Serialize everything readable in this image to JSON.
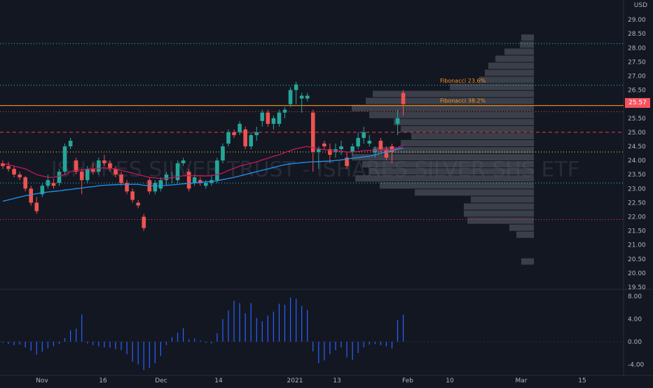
{
  "chart_data": [
    {
      "type": "candlestick",
      "currency_label": "USD",
      "watermark": "ISHARES SILVER TRUST - ISHARES SILVER SHS ETF",
      "last_price": "25.57",
      "ylim": [
        19.5,
        29.5
      ],
      "y_ticks": [
        "19.50",
        "20.00",
        "20.50",
        "21.00",
        "21.50",
        "22.00",
        "22.50",
        "23.00",
        "23.50",
        "24.00",
        "24.50",
        "25.00",
        "25.50",
        "26.00",
        "26.50",
        "27.00",
        "27.50",
        "28.00",
        "28.50",
        "29.00"
      ],
      "x_ticks": [
        "Nov",
        "16",
        "Dec",
        "14",
        "2021",
        "13",
        "Feb",
        "10",
        "Mar",
        "15"
      ],
      "ohlc": [
        [
          23.9,
          24.0,
          23.7,
          23.8
        ],
        [
          23.8,
          23.95,
          23.6,
          23.7
        ],
        [
          23.7,
          23.8,
          23.4,
          23.5
        ],
        [
          23.5,
          23.6,
          23.3,
          23.4
        ],
        [
          23.4,
          23.45,
          22.9,
          23.0
        ],
        [
          23.0,
          23.1,
          22.4,
          22.5
        ],
        [
          22.5,
          22.7,
          22.1,
          22.2
        ],
        [
          22.8,
          23.2,
          22.7,
          23.1
        ],
        [
          23.1,
          23.5,
          23.0,
          23.3
        ],
        [
          23.2,
          23.35,
          23.0,
          23.1
        ],
        [
          23.2,
          23.7,
          23.1,
          23.6
        ],
        [
          23.6,
          24.6,
          23.5,
          24.5
        ],
        [
          24.5,
          24.8,
          24.4,
          24.7
        ],
        [
          24.0,
          24.1,
          23.5,
          23.6
        ],
        [
          23.6,
          23.7,
          22.8,
          23.3
        ],
        [
          23.3,
          23.8,
          23.2,
          23.7
        ],
        [
          23.7,
          23.9,
          23.5,
          23.6
        ],
        [
          23.6,
          24.1,
          23.5,
          24.0
        ],
        [
          24.0,
          24.2,
          23.8,
          23.9
        ],
        [
          23.9,
          24.0,
          23.6,
          23.7
        ],
        [
          23.7,
          23.8,
          23.4,
          23.5
        ],
        [
          23.5,
          23.6,
          23.1,
          23.2
        ],
        [
          23.2,
          23.3,
          22.8,
          22.9
        ],
        [
          22.9,
          23.0,
          22.5,
          22.6
        ],
        [
          22.5,
          22.6,
          22.3,
          22.4
        ],
        [
          22.0,
          22.1,
          21.5,
          21.6
        ],
        [
          23.3,
          23.4,
          22.8,
          22.9
        ],
        [
          22.9,
          23.3,
          22.8,
          23.2
        ],
        [
          23.0,
          23.4,
          22.9,
          23.3
        ],
        [
          23.3,
          23.6,
          23.1,
          23.5
        ],
        [
          23.4,
          23.6,
          23.2,
          23.4
        ],
        [
          23.3,
          24.0,
          23.2,
          23.9
        ],
        [
          23.9,
          24.1,
          23.8,
          24.0
        ],
        [
          23.6,
          23.7,
          22.9,
          23.0
        ],
        [
          23.2,
          23.5,
          23.1,
          23.4
        ],
        [
          23.3,
          23.4,
          23.1,
          23.2
        ],
        [
          23.1,
          23.3,
          23.0,
          23.2
        ],
        [
          23.2,
          23.5,
          23.1,
          23.3
        ],
        [
          23.3,
          24.1,
          23.2,
          24.0
        ],
        [
          24.0,
          24.6,
          23.9,
          24.5
        ],
        [
          24.6,
          25.1,
          24.5,
          25.0
        ],
        [
          25.0,
          25.1,
          24.8,
          24.9
        ],
        [
          25.0,
          25.4,
          24.9,
          25.3
        ],
        [
          25.1,
          25.2,
          24.4,
          24.5
        ],
        [
          24.5,
          25.0,
          24.4,
          24.9
        ],
        [
          24.9,
          25.2,
          24.7,
          25.0
        ],
        [
          25.4,
          25.8,
          25.2,
          25.7
        ],
        [
          25.7,
          25.8,
          25.2,
          25.3
        ],
        [
          25.3,
          25.6,
          25.1,
          25.5
        ],
        [
          25.3,
          25.8,
          25.2,
          25.7
        ],
        [
          25.7,
          25.9,
          25.5,
          25.8
        ],
        [
          26.0,
          26.6,
          25.9,
          26.5
        ],
        [
          26.5,
          26.8,
          26.0,
          26.7
        ],
        [
          26.2,
          26.4,
          25.7,
          26.3
        ],
        [
          26.2,
          26.4,
          26.1,
          26.3
        ],
        [
          25.7,
          25.8,
          23.6,
          24.3
        ],
        [
          24.3,
          24.5,
          23.7,
          24.4
        ],
        [
          24.6,
          24.7,
          24.4,
          24.5
        ],
        [
          24.4,
          24.6,
          23.9,
          24.2
        ],
        [
          24.3,
          24.6,
          24.1,
          24.4
        ],
        [
          24.4,
          24.7,
          24.2,
          24.5
        ],
        [
          24.1,
          24.3,
          23.7,
          23.8
        ],
        [
          24.3,
          24.6,
          24.2,
          24.5
        ],
        [
          24.5,
          25.0,
          24.4,
          24.8
        ],
        [
          24.8,
          25.2,
          24.6,
          25.0
        ],
        [
          24.6,
          24.9,
          24.5,
          24.7
        ],
        [
          24.3,
          24.5,
          24.1,
          24.4
        ],
        [
          24.7,
          24.8,
          24.3,
          24.4
        ],
        [
          24.4,
          24.5,
          24.0,
          24.1
        ],
        [
          24.5,
          24.6,
          23.9,
          24.3
        ],
        [
          25.3,
          25.8,
          24.9,
          25.5
        ],
        [
          26.4,
          26.5,
          25.6,
          26.0
        ]
      ],
      "ma_red": [
        23.9,
        23.85,
        23.8,
        23.75,
        23.7,
        23.6,
        23.5,
        23.45,
        23.4,
        23.4,
        23.45,
        23.5,
        23.6,
        23.65,
        23.65,
        23.7,
        23.7,
        23.72,
        23.74,
        23.72,
        23.7,
        23.65,
        23.6,
        23.55,
        23.5,
        23.45,
        23.4,
        23.38,
        23.36,
        23.36,
        23.38,
        23.42,
        23.46,
        23.46,
        23.46,
        23.45,
        23.45,
        23.46,
        23.5,
        23.55,
        23.65,
        23.72,
        23.8,
        23.85,
        23.9,
        23.95,
        24.02,
        24.08,
        24.15,
        24.2,
        24.28,
        24.35,
        24.42,
        24.46,
        24.5,
        24.45,
        24.42,
        24.38,
        24.36,
        24.34,
        24.33,
        24.3,
        24.3,
        24.32,
        24.35,
        24.36,
        24.36,
        24.38,
        24.37,
        24.38,
        24.45,
        24.55
      ],
      "ma_blue": [
        22.55,
        22.6,
        22.65,
        22.7,
        22.75,
        22.78,
        22.82,
        22.85,
        22.88,
        22.9,
        22.92,
        22.95,
        22.97,
        23.0,
        23.02,
        23.05,
        23.07,
        23.1,
        23.12,
        23.13,
        23.14,
        23.15,
        23.15,
        23.15,
        23.15,
        23.12,
        23.1,
        23.1,
        23.1,
        23.12,
        23.13,
        23.15,
        23.17,
        23.18,
        23.2,
        23.22,
        23.24,
        23.25,
        23.28,
        23.32,
        23.36,
        23.4,
        23.45,
        23.5,
        23.55,
        23.6,
        23.65,
        23.7,
        23.75,
        23.8,
        23.85,
        23.88,
        23.9,
        23.92,
        23.94,
        23.95,
        23.96,
        23.97,
        23.98,
        24.0,
        24.02,
        24.05,
        24.08,
        24.1,
        24.13,
        24.15,
        24.2,
        24.25,
        24.3,
        24.35,
        24.4,
        24.45
      ],
      "hlines": [
        {
          "value": 28.15,
          "color": "#26c6da",
          "style": "dotted"
        },
        {
          "value": 26.67,
          "color": "#26c6da",
          "style": "dotted"
        },
        {
          "value": 25.95,
          "color": "#f7931a",
          "style": "solid"
        },
        {
          "value": 25.73,
          "color": "#f23645",
          "style": "dotted"
        },
        {
          "value": 25.0,
          "color": "#f23645",
          "style": "dashed"
        },
        {
          "value": 24.3,
          "color": "#ffeb3b",
          "style": "dotted"
        },
        {
          "value": 23.2,
          "color": "#26c6da",
          "style": "dotted"
        },
        {
          "value": 21.9,
          "color": "#f23645",
          "style": "dotted"
        }
      ],
      "fib_labels": [
        {
          "text": "Fibonacci 23.6%",
          "value": 26.67
        },
        {
          "text": "Fibonacci 38.2%",
          "value": 25.95
        }
      ],
      "volume_profile": [
        {
          "price": 28.35,
          "width": 18
        },
        {
          "price": 28.1,
          "width": 20
        },
        {
          "price": 27.85,
          "width": 42
        },
        {
          "price": 27.6,
          "width": 55
        },
        {
          "price": 27.35,
          "width": 65
        },
        {
          "price": 27.1,
          "width": 70
        },
        {
          "price": 26.85,
          "width": 78
        },
        {
          "price": 26.6,
          "width": 120
        },
        {
          "price": 26.35,
          "width": 230
        },
        {
          "price": 26.1,
          "width": 240
        },
        {
          "price": 25.85,
          "width": 260
        },
        {
          "price": 25.6,
          "width": 235
        },
        {
          "price": 25.35,
          "width": 200
        },
        {
          "price": 25.1,
          "width": 190
        },
        {
          "price": 24.85,
          "width": 175
        },
        {
          "price": 24.6,
          "width": 190
        },
        {
          "price": 24.35,
          "width": 230
        },
        {
          "price": 24.1,
          "width": 260
        },
        {
          "price": 23.85,
          "width": 245
        },
        {
          "price": 23.6,
          "width": 235
        },
        {
          "price": 23.35,
          "width": 255
        },
        {
          "price": 23.1,
          "width": 220
        },
        {
          "price": 22.85,
          "width": 170
        },
        {
          "price": 22.6,
          "width": 90
        },
        {
          "price": 22.35,
          "width": 100
        },
        {
          "price": 22.1,
          "width": 100
        },
        {
          "price": 21.85,
          "width": 95
        },
        {
          "price": 21.6,
          "width": 35
        },
        {
          "price": 21.35,
          "width": 25
        },
        {
          "price": 20.4,
          "width": 18
        }
      ]
    },
    {
      "type": "bar",
      "ylim": [
        -5.2,
        9.0
      ],
      "y_ticks": [
        "8.00",
        "4.00",
        "0.00",
        "-4.00"
      ],
      "values": [
        -0.2,
        -0.4,
        -0.6,
        -0.5,
        -1.0,
        -1.6,
        -2.3,
        -1.8,
        -1.2,
        -0.8,
        -0.4,
        0.6,
        2.0,
        2.3,
        4.8,
        -0.3,
        -0.6,
        -0.8,
        -1.0,
        -1.1,
        -1.3,
        -1.5,
        -2.2,
        -3.5,
        -4.0,
        -5.0,
        -4.6,
        -3.8,
        -2.5,
        -0.6,
        0.8,
        1.6,
        2.4,
        0.4,
        0.6,
        0.2,
        -0.2,
        -0.3,
        1.5,
        4.0,
        5.5,
        7.2,
        6.8,
        5.0,
        6.8,
        4.2,
        3.6,
        4.6,
        5.3,
        6.7,
        6.5,
        7.8,
        7.6,
        6.3,
        5.6,
        -1.7,
        -3.8,
        -3.3,
        -2.2,
        -1.5,
        -1.0,
        -2.8,
        -3.2,
        -2.0,
        -1.0,
        -0.5,
        -0.4,
        -0.6,
        -0.8,
        -1.2,
        3.8,
        4.8
      ]
    }
  ]
}
